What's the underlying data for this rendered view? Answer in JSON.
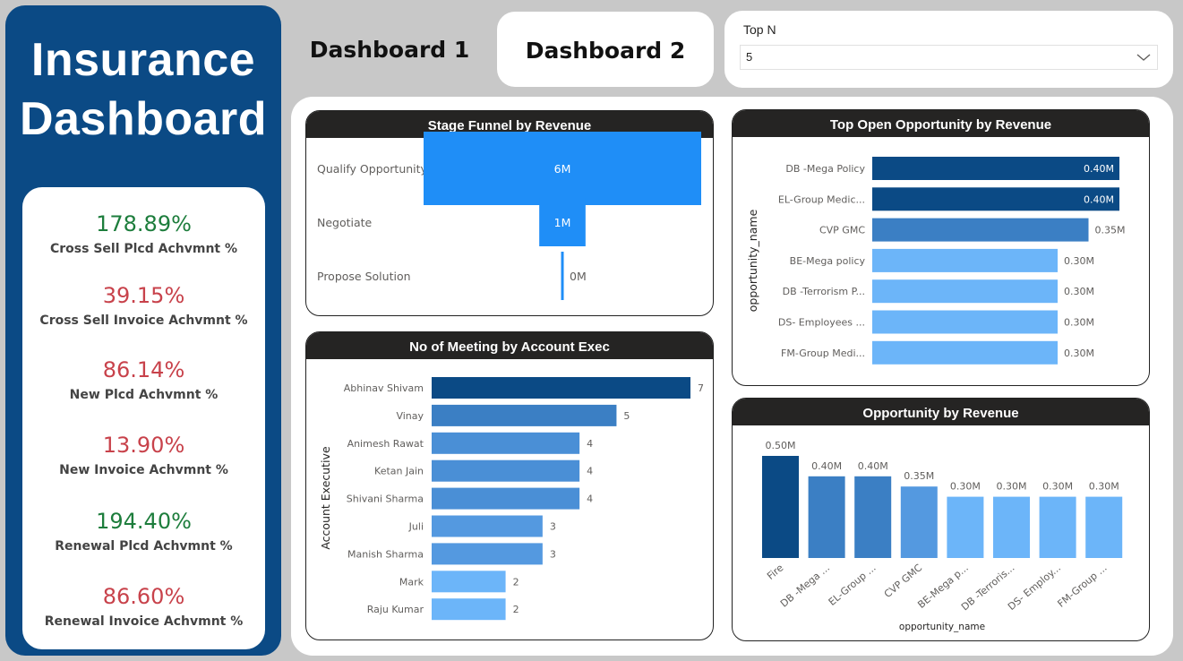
{
  "app_title_line1": "Insurance",
  "app_title_line2": "Dashboard",
  "colors": {
    "dark": "#0b4a85",
    "mid": "#3b7fc4",
    "medium_light": "#5499e0",
    "light": "#6cb5f9",
    "funnel": "#1f8ef7",
    "positive": "#1d7d3c",
    "negative": "#c8424b"
  },
  "kpis": [
    {
      "value": "178.89%",
      "label": "Cross Sell Plcd Achvmnt %",
      "status": "positive"
    },
    {
      "value": "39.15%",
      "label": "Cross Sell Invoice Achvmnt %",
      "status": "negative"
    },
    {
      "value": "86.14%",
      "label": "New Plcd Achvmnt %",
      "status": "negative"
    },
    {
      "value": "13.90%",
      "label": "New Invoice Achvmnt %",
      "status": "negative"
    },
    {
      "value": "194.40%",
      "label": "Renewal Plcd Achvmnt %",
      "status": "positive"
    },
    {
      "value": "86.60%",
      "label": "Renewal Invoice Achvmnt %",
      "status": "negative"
    }
  ],
  "nav": {
    "dashboard1": "Dashboard 1",
    "dashboard2": "Dashboard 2"
  },
  "slicer": {
    "label": "Top N",
    "value": "5",
    "icon": "chevron-down-icon"
  },
  "chart_data": [
    {
      "type": "bar",
      "title": "Stage Funnel by Revenue",
      "subtype": "funnel",
      "categories": [
        "Qualify Opportunity",
        "Negotiate",
        "Propose Solution"
      ],
      "values": [
        6,
        1,
        0.05
      ],
      "labels": [
        "6M",
        "1M",
        "0M"
      ]
    },
    {
      "type": "bar",
      "title": "Top Open Opportunity by Revenue",
      "orientation": "horizontal",
      "ylabel": "opportunity_name",
      "categories": [
        "DB -Mega Policy",
        "EL-Group Medic...",
        "CVP GMC",
        "BE-Mega policy",
        "DB -Terrorism P...",
        "DS- Employees ...",
        "FM-Group Medi..."
      ],
      "values": [
        0.4,
        0.4,
        0.35,
        0.3,
        0.3,
        0.3,
        0.3
      ],
      "labels": [
        "0.40M",
        "0.40M",
        "0.35M",
        "0.30M",
        "0.30M",
        "0.30M",
        "0.30M"
      ],
      "xlim": [
        0,
        0.4
      ]
    },
    {
      "type": "bar",
      "title": "No of Meeting by Account Exec",
      "orientation": "horizontal",
      "ylabel": "Account Executive",
      "categories": [
        "Abhinav Shivam",
        "Vinay",
        "Animesh Rawat",
        "Ketan Jain",
        "Shivani Sharma",
        "Juli",
        "Manish Sharma",
        "Mark",
        "Raju Kumar"
      ],
      "values": [
        7,
        5,
        4,
        4,
        4,
        3,
        3,
        2,
        2
      ],
      "xlim": [
        0,
        7
      ]
    },
    {
      "type": "bar",
      "title": "Opportunity by Revenue",
      "orientation": "vertical",
      "xlabel": "opportunity_name",
      "categories": [
        "Fire",
        "DB -Mega ...",
        "EL-Group ...",
        "CVP GMC",
        "BE-Mega p...",
        "DB -Terroris...",
        "DS- Employ...",
        "FM-Group ..."
      ],
      "values": [
        0.5,
        0.4,
        0.4,
        0.35,
        0.3,
        0.3,
        0.3,
        0.3
      ],
      "labels": [
        "0.50M",
        "0.40M",
        "0.40M",
        "0.35M",
        "0.30M",
        "0.30M",
        "0.30M",
        "0.30M"
      ],
      "ylim": [
        0,
        0.5
      ]
    }
  ]
}
